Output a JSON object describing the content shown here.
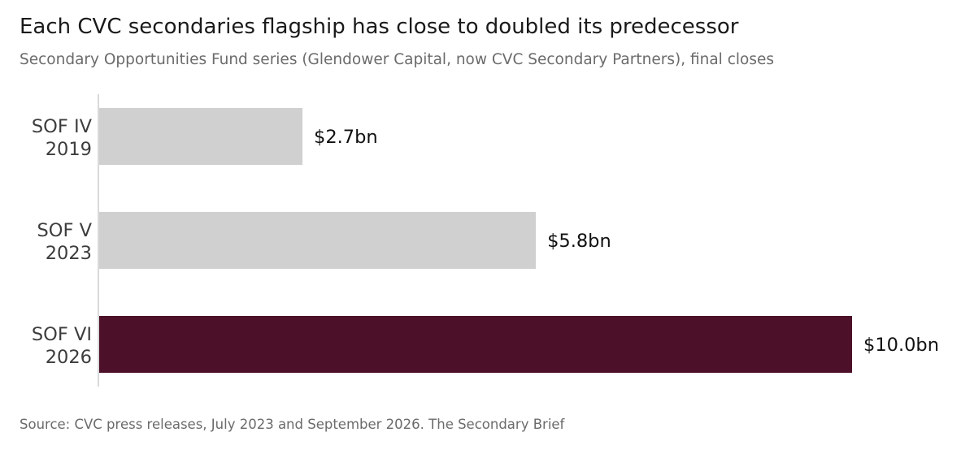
{
  "title": "Each CVC secondaries flagship has close to doubled its predecessor",
  "subtitle": "Secondary Opportunities Fund series (Glendower Capital, now CVC Secondary Partners), final closes",
  "source": "Source: CVC press releases, July 2023 and September 2026.  The Secondary Brief",
  "colors": {
    "highlight": "#4d1029",
    "muted": "#d0d0d0",
    "axis": "#d9d9d9"
  },
  "chart_data": {
    "type": "bar",
    "orientation": "horizontal",
    "categories": [
      [
        "SOF IV",
        "2019"
      ],
      [
        "SOF V",
        "2023"
      ],
      [
        "SOF VI",
        "2026"
      ]
    ],
    "values": [
      2.7,
      5.8,
      10.0
    ],
    "value_labels": [
      "$2.7bn",
      "$5.8bn",
      "$10.0bn"
    ],
    "highlighted": [
      false,
      false,
      true
    ],
    "xlim": [
      0,
      10.0
    ],
    "grid": false,
    "legend": "none",
    "xlabel": "",
    "ylabel": ""
  }
}
